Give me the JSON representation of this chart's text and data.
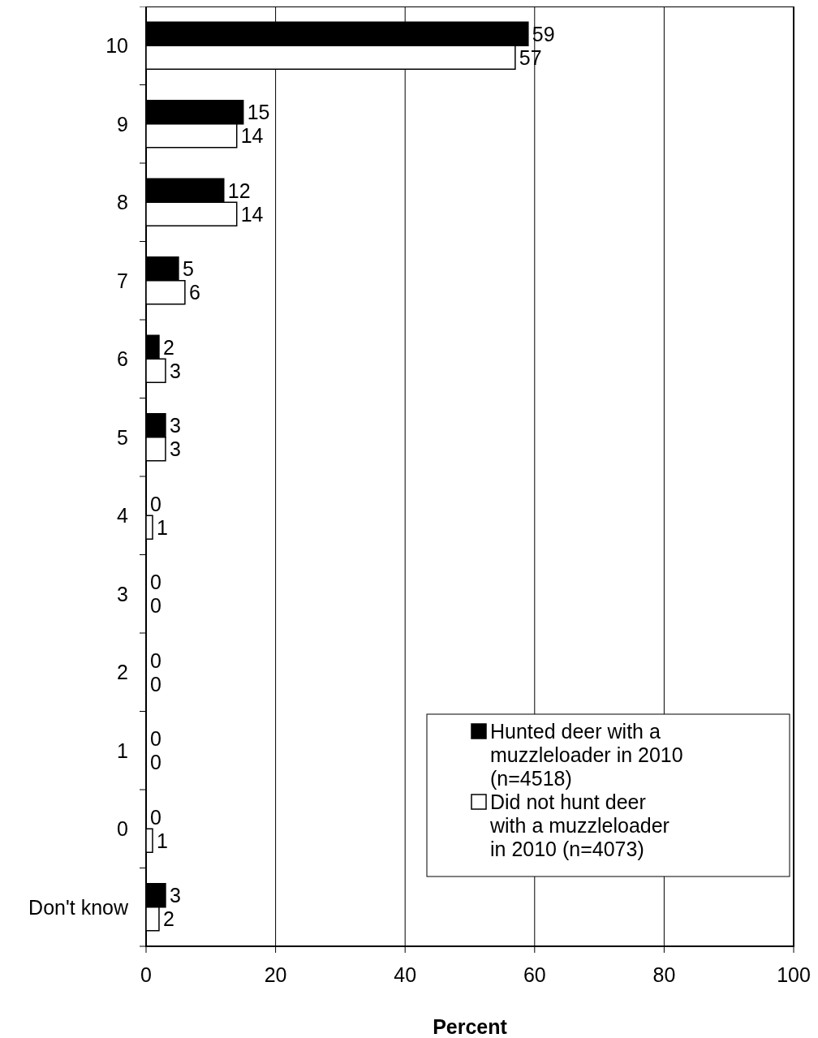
{
  "chart_data": {
    "type": "bar",
    "orientation": "horizontal",
    "xlabel": "Percent",
    "categories": [
      "10",
      "9",
      "8",
      "7",
      "6",
      "5",
      "4",
      "3",
      "2",
      "1",
      "0",
      "Don't know"
    ],
    "series": [
      {
        "name": "Hunted deer with a muzzleloader in 2010 (n=4518)",
        "color": "#000000",
        "values": [
          59,
          15,
          12,
          5,
          2,
          3,
          0,
          0,
          0,
          0,
          0,
          3
        ]
      },
      {
        "name": "Did not hunt deer with a muzzleloader in 2010 (n=4073)",
        "color": "#ffffff",
        "values": [
          57,
          14,
          14,
          6,
          3,
          3,
          1,
          0,
          0,
          0,
          1,
          2
        ]
      }
    ],
    "xlim": [
      0,
      100
    ],
    "xticks": [
      0,
      20,
      40,
      60,
      80,
      100
    ],
    "grid": "x",
    "legend": "bottom right",
    "data_labels": true
  }
}
